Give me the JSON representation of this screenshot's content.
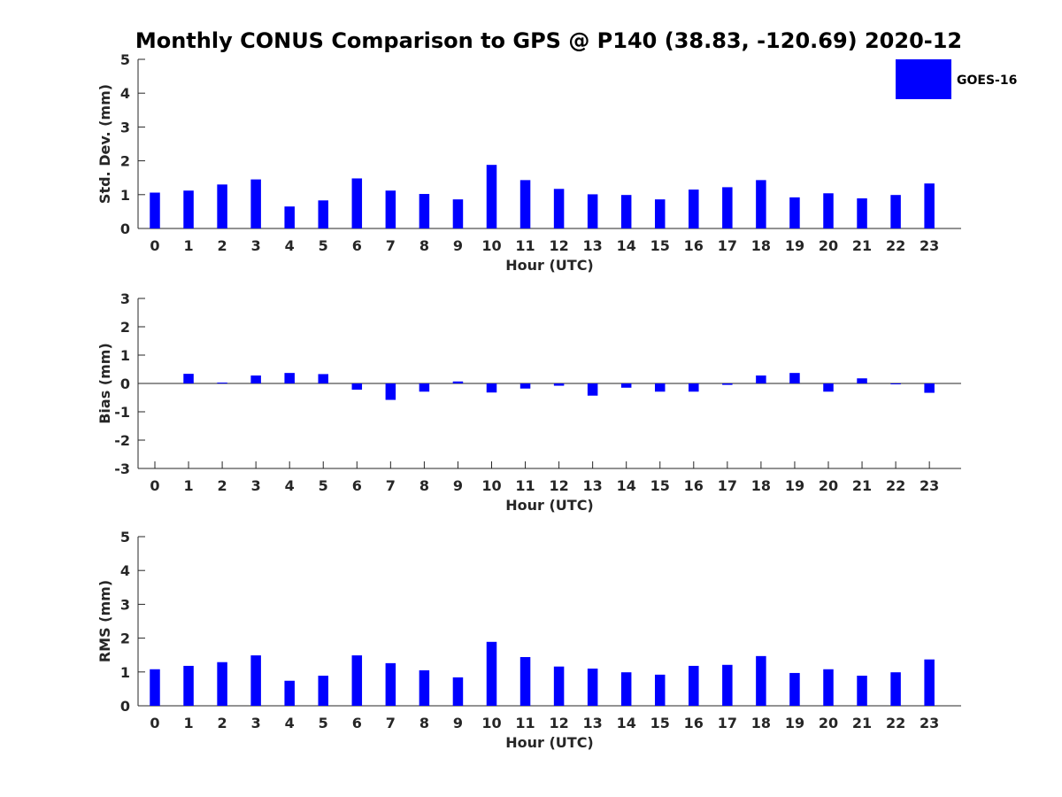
{
  "chart_data": {
    "type": "bar",
    "title": "Monthly CONUS Comparison to GPS @ P140 (38.83, -120.69) 2020-12",
    "legend": {
      "entries": [
        "GOES-16"
      ],
      "placement": "top-right"
    },
    "colors": {
      "bar": "#0000ff",
      "axis": "#262626"
    },
    "panels": [
      {
        "id": "std",
        "ylabel": "Std. Dev. (mm)",
        "xlabel": "Hour (UTC)",
        "ylim": [
          0,
          5
        ],
        "yticks": [
          0,
          1,
          2,
          3,
          4,
          5
        ],
        "grid": false,
        "categories": [
          "0",
          "1",
          "2",
          "3",
          "4",
          "5",
          "6",
          "7",
          "8",
          "9",
          "10",
          "11",
          "12",
          "13",
          "14",
          "15",
          "16",
          "17",
          "18",
          "19",
          "20",
          "21",
          "22",
          "23"
        ],
        "series": [
          {
            "name": "GOES-16",
            "values": [
              1.06,
              1.12,
              1.3,
              1.45,
              0.65,
              0.83,
              1.48,
              1.12,
              1.02,
              0.86,
              1.88,
              1.43,
              1.17,
              1.01,
              0.99,
              0.86,
              1.15,
              1.22,
              1.43,
              0.92,
              1.04,
              0.89,
              0.99,
              1.33
            ]
          }
        ]
      },
      {
        "id": "bias",
        "ylabel": "Bias (mm)",
        "xlabel": "Hour (UTC)",
        "ylim": [
          -3,
          3
        ],
        "yticks": [
          -3,
          -2,
          -1,
          0,
          1,
          2,
          3
        ],
        "grid": false,
        "categories": [
          "0",
          "1",
          "2",
          "3",
          "4",
          "5",
          "6",
          "7",
          "8",
          "9",
          "10",
          "11",
          "12",
          "13",
          "14",
          "15",
          "16",
          "17",
          "18",
          "19",
          "20",
          "21",
          "22",
          "23"
        ],
        "series": [
          {
            "name": "GOES-16",
            "values": [
              0.0,
              0.34,
              0.03,
              0.28,
              0.37,
              0.33,
              -0.22,
              -0.58,
              -0.29,
              0.07,
              -0.32,
              -0.18,
              -0.08,
              -0.43,
              -0.15,
              -0.29,
              -0.29,
              -0.05,
              0.28,
              0.37,
              -0.29,
              0.18,
              -0.02,
              -0.33
            ]
          }
        ]
      },
      {
        "id": "rms",
        "ylabel": "RMS (mm)",
        "xlabel": "Hour (UTC)",
        "ylim": [
          0,
          5
        ],
        "yticks": [
          0,
          1,
          2,
          3,
          4,
          5
        ],
        "grid": false,
        "categories": [
          "0",
          "1",
          "2",
          "3",
          "4",
          "5",
          "6",
          "7",
          "8",
          "9",
          "10",
          "11",
          "12",
          "13",
          "14",
          "15",
          "16",
          "17",
          "18",
          "19",
          "20",
          "21",
          "22",
          "23"
        ],
        "series": [
          {
            "name": "GOES-16",
            "values": [
              1.08,
              1.18,
              1.29,
              1.49,
              0.74,
              0.89,
              1.49,
              1.26,
              1.05,
              0.84,
              1.89,
              1.44,
              1.16,
              1.1,
              0.99,
              0.92,
              1.18,
              1.21,
              1.47,
              0.97,
              1.08,
              0.89,
              0.99,
              1.37
            ]
          }
        ]
      }
    ]
  }
}
